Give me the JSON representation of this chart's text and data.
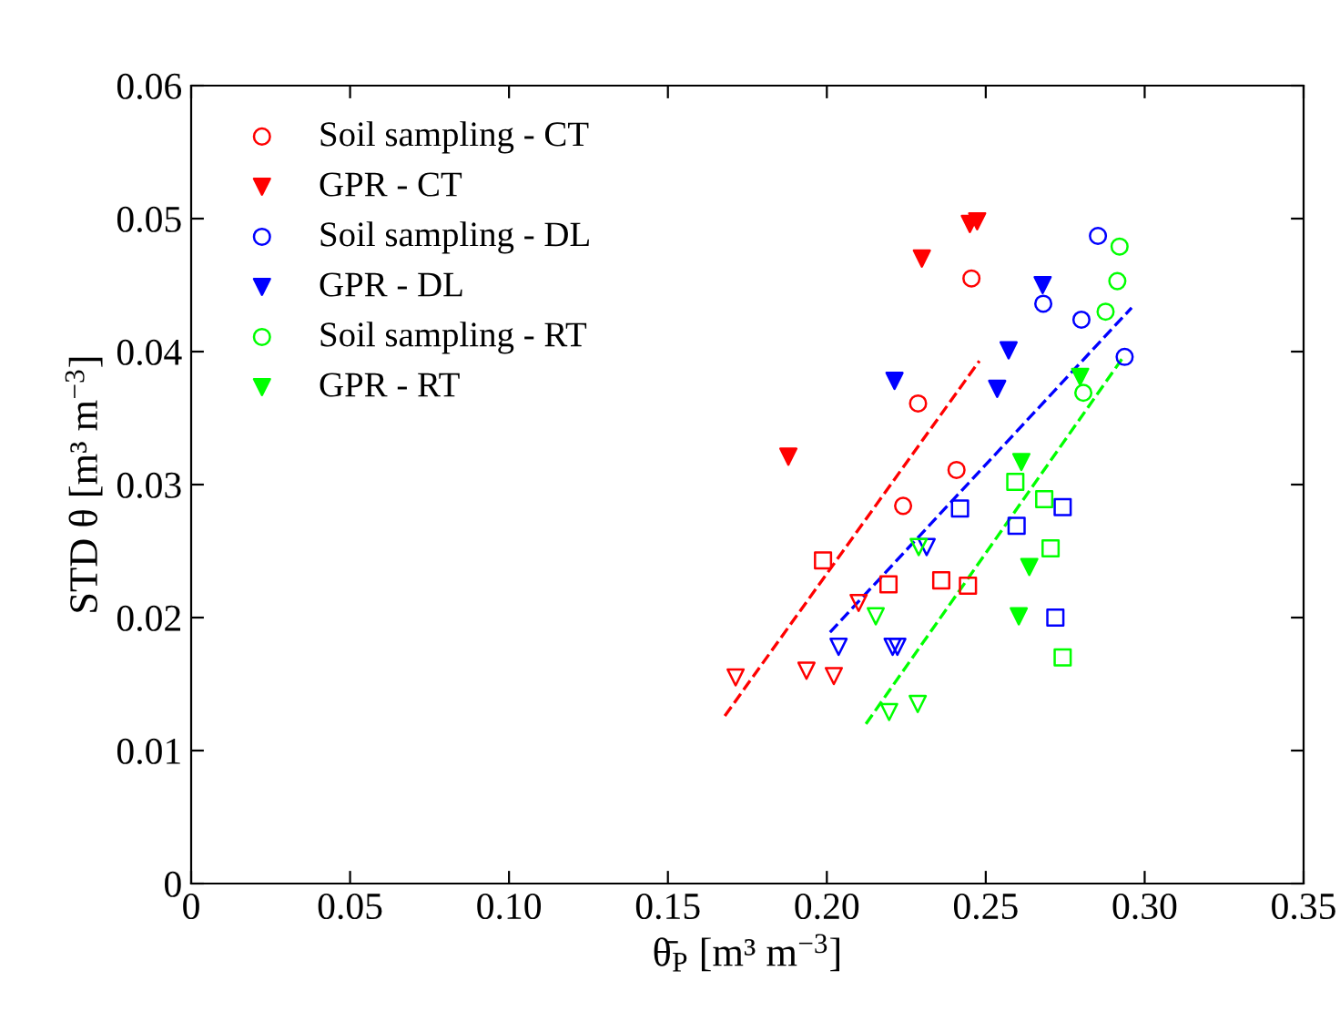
{
  "chart_data": {
    "type": "scatter",
    "xlabel": "θ̄$_{P}$ [m³ m$^{−3}$]",
    "ylabel": "STD θ [m³ m$^{−3}$]",
    "xlim": [
      0,
      0.35
    ],
    "ylim": [
      0,
      0.06
    ],
    "xticks": [
      0,
      0.05,
      {
        "value": 0.1,
        "label": "0.10"
      },
      0.15,
      {
        "value": 0.2,
        "label": "0.20"
      },
      0.25,
      {
        "value": 0.3,
        "label": "0.30"
      },
      0.35
    ],
    "yticks": [
      0,
      0.01,
      0.02,
      0.03,
      0.04,
      0.05,
      0.06
    ],
    "grid": false,
    "legend": "top left",
    "series": [
      {
        "name": "Soil sampling - CT",
        "color": "#ff0000",
        "marker": "circle",
        "x": [
          0.2455,
          0.2287,
          0.2408,
          0.224
        ],
        "values": [
          0.0455,
          0.0361,
          0.0311,
          0.0284
        ]
      },
      {
        "color": "#ff0000",
        "marker": "square",
        "x": [
          0.1988,
          0.2194,
          0.236,
          0.2444
        ],
        "values": [
          0.0243,
          0.0225,
          0.0228,
          0.0224
        ]
      },
      {
        "color": "#ff0000",
        "marker": "triangle",
        "x": [
          0.1713,
          0.1936,
          0.2022,
          0.21
        ],
        "values": [
          0.0155,
          0.016,
          0.0156,
          0.0211
        ]
      },
      {
        "name": "GPR - CT",
        "color": "#ff0000",
        "marker": "triangle",
        "x": [
          0.1879,
          0.2299,
          0.245,
          0.2473
        ],
        "values": [
          0.0321,
          0.047,
          0.0496,
          0.0498
        ]
      },
      {
        "name": "Soil sampling - DL",
        "color": "#0000ff",
        "marker": "circle",
        "x": [
          0.2853,
          0.2681,
          0.2801,
          0.2937
        ],
        "values": [
          0.0487,
          0.0436,
          0.0424,
          0.0396
        ]
      },
      {
        "color": "#0000ff",
        "marker": "square",
        "x": [
          0.2419,
          0.2742,
          0.2597,
          0.2719
        ],
        "values": [
          0.0282,
          0.0283,
          0.0269,
          0.02
        ]
      },
      {
        "color": "#0000ff",
        "marker": "triangle",
        "x": [
          0.2037,
          0.2207,
          0.2222,
          0.2314
        ],
        "values": [
          0.0178,
          0.0178,
          0.0178,
          0.0253
        ]
      },
      {
        "name": "GPR - DL",
        "color": "#0000ff",
        "marker": "triangle",
        "x": [
          0.2213,
          0.2572,
          0.2536,
          0.2679
        ],
        "values": [
          0.0378,
          0.0401,
          0.0372,
          0.045
        ]
      },
      {
        "name": "Soil sampling - RT",
        "color": "#00ff00",
        "marker": "circle",
        "x": [
          0.2921,
          0.2914,
          0.2877,
          0.2807
        ],
        "values": [
          0.0479,
          0.0453,
          0.043,
          0.0369
        ]
      },
      {
        "color": "#00ff00",
        "marker": "square",
        "x": [
          0.2593,
          0.2684,
          0.2704,
          0.2742
        ],
        "values": [
          0.0302,
          0.0289,
          0.0252,
          0.017
        ]
      },
      {
        "color": "#00ff00",
        "marker": "triangle",
        "x": [
          0.2289,
          0.2154,
          0.2196,
          0.2286
        ],
        "values": [
          0.0253,
          0.0201,
          0.0129,
          0.0135
        ]
      },
      {
        "name": "GPR - RT",
        "color": "#00ff00",
        "marker": "triangle",
        "x": [
          0.2797,
          0.2612,
          0.2637,
          0.2604
        ],
        "values": [
          0.0381,
          0.0317,
          0.0238,
          0.0201
        ]
      },
      {
        "type": "line",
        "color": "#ff0000",
        "marker": "none",
        "line_style": "dashed",
        "x": [
          0.1679,
          0.248
        ],
        "values": [
          0.0126,
          0.0393
        ]
      },
      {
        "type": "line",
        "color": "#0000ff",
        "marker": "none",
        "line_style": "dashed",
        "x": [
          0.201,
          0.2959
        ],
        "values": [
          0.0189,
          0.0433
        ]
      },
      {
        "type": "line",
        "color": "#00ff00",
        "marker": "none",
        "line_style": "dashed",
        "x": [
          0.2123,
          0.293
        ],
        "values": [
          0.012,
          0.0395
        ]
      }
    ]
  }
}
